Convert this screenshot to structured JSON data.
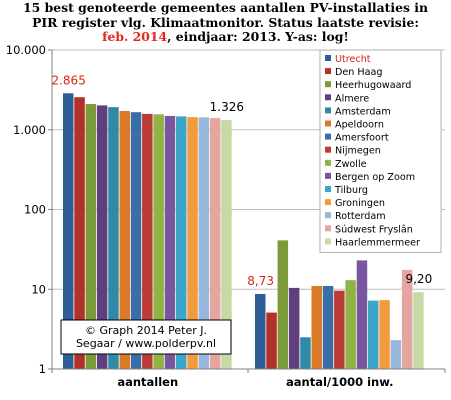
{
  "chart_data": {
    "type": "bar",
    "title_lines": [
      "15 best genoteerde gemeentes aantallen PV-installaties in",
      "PIR register vlg. Klimaatmonitor.  Status laatste revisie:"
    ],
    "title_line3": {
      "highlight": "feb. 2014",
      "rest": ", eindjaar: 2013. Y-as: log!"
    },
    "y_scale": "log",
    "ylim": [
      1,
      10000
    ],
    "y_ticks": [
      {
        "value": 1,
        "label": "1"
      },
      {
        "value": 10,
        "label": "10"
      },
      {
        "value": 100,
        "label": "100"
      },
      {
        "value": 1000,
        "label": "1.000"
      },
      {
        "value": 10000,
        "label": "10.000"
      }
    ],
    "grid": true,
    "legend_position": "top-right",
    "categories": [
      "aantallen",
      "aantal/1000 inw."
    ],
    "series": [
      {
        "name": "Utrecht",
        "color": "#2e5e95",
        "values": [
          2865,
          8.73
        ]
      },
      {
        "name": "Den Haag",
        "color": "#b33128",
        "values": [
          2560,
          5.1
        ]
      },
      {
        "name": "Heerhugowaard",
        "color": "#7c9a38",
        "values": [
          2100,
          41
        ]
      },
      {
        "name": "Almere",
        "color": "#5f3f7e",
        "values": [
          2020,
          10.4
        ]
      },
      {
        "name": "Amsterdam",
        "color": "#2f8aa8",
        "values": [
          1920,
          2.5
        ]
      },
      {
        "name": "Apeldoorn",
        "color": "#d97a26",
        "values": [
          1720,
          11
        ]
      },
      {
        "name": "Amersfoort",
        "color": "#3a6ea8",
        "values": [
          1660,
          11
        ]
      },
      {
        "name": "Nijmegen",
        "color": "#bd3b35",
        "values": [
          1580,
          9.6
        ]
      },
      {
        "name": "Zwolle",
        "color": "#8fb443",
        "values": [
          1560,
          13
        ]
      },
      {
        "name": "Bergen op Zoom",
        "color": "#7a56a0",
        "values": [
          1490,
          23
        ]
      },
      {
        "name": "Tilburg",
        "color": "#3ca6c8",
        "values": [
          1470,
          7.2
        ]
      },
      {
        "name": "Groningen",
        "color": "#f29a3c",
        "values": [
          1440,
          7.3
        ]
      },
      {
        "name": "Rotterdam",
        "color": "#98b6dc",
        "values": [
          1430,
          2.3
        ]
      },
      {
        "name": "Súdwest Fryslân",
        "color": "#e5a5a1",
        "values": [
          1400,
          17.5
        ]
      },
      {
        "name": "Haarlemmermeer",
        "color": "#c7d9a4",
        "values": [
          1326,
          9.2
        ]
      }
    ],
    "data_labels": [
      {
        "text": "2.865",
        "category": 0,
        "series": 0,
        "color": "#d8241d"
      },
      {
        "text": "1.326",
        "category": 0,
        "series": 14,
        "color": "#000000"
      },
      {
        "text": "8,73",
        "category": 1,
        "series": 0,
        "color": "#d8241d"
      },
      {
        "text": "9,20",
        "category": 1,
        "series": 14,
        "color": "#000000"
      }
    ],
    "watermark": [
      "© Graph 2014 Peter J.",
      "Segaar / www.polderpv.nl"
    ]
  }
}
